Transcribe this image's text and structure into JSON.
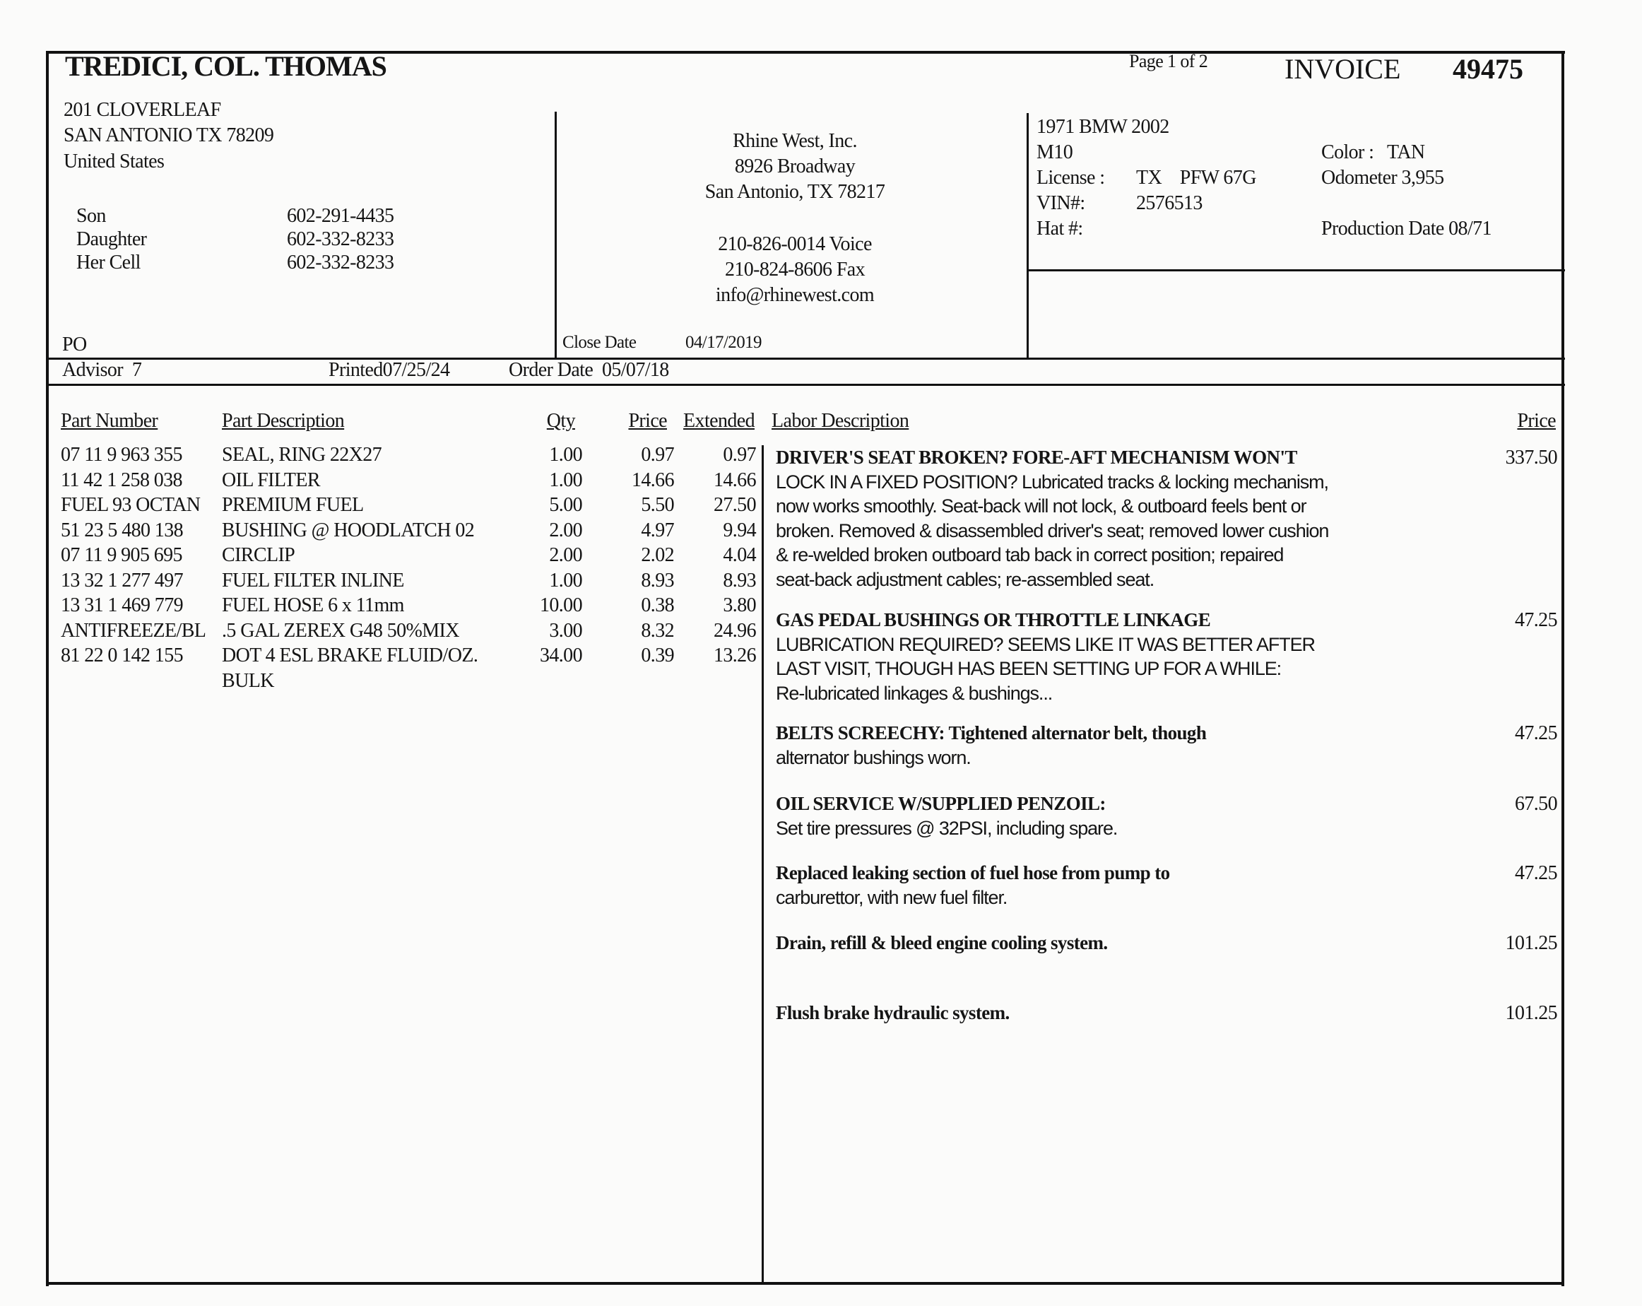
{
  "customer": {
    "name": "TREDICI, COL. THOMAS",
    "address_lines": [
      "201 CLOVERLEAF",
      "SAN ANTONIO TX 78209",
      "United States"
    ],
    "contacts": [
      {
        "label": "Son",
        "phone": "602-291-4435"
      },
      {
        "label": "Daughter",
        "phone": "602-332-8233"
      },
      {
        "label": "Her Cell",
        "phone": "602-332-8233"
      }
    ],
    "po_label": "PO"
  },
  "shop": {
    "name": "Rhine West, Inc.",
    "street": "8926 Broadway",
    "city": "San Antonio, TX 78217",
    "voice": "210-826-0014  Voice",
    "fax": "210-824-8606  Fax",
    "email": "info@rhinewest.com",
    "close_date_label": "Close Date",
    "close_date": "04/17/2019"
  },
  "header": {
    "page": "Page 1 of 2",
    "invoice_label": "INVOICE",
    "invoice_number": "49475"
  },
  "vehicle": {
    "model": "1971 BMW 2002",
    "engine": "M10",
    "license_label": "License :",
    "license": "TX    PFW 67G",
    "vin_label": "VIN#:",
    "vin": "2576513",
    "hat_label": "Hat #:",
    "color": "Color :   TAN",
    "odometer": "Odometer 3,955",
    "production_date": "Production Date 08/71"
  },
  "meta": {
    "advisor": "Advisor  7",
    "printed": "Printed07/25/24",
    "order_date": "Order Date  05/07/18"
  },
  "parts": {
    "headers": {
      "number": "Part Number",
      "description": "Part Description",
      "qty": "Qty",
      "price": "Price",
      "extended": "Extended"
    },
    "rows": [
      {
        "number": "07 11 9 963 355",
        "description": "SEAL, RING 22X27",
        "qty": "1.00",
        "price": "0.97",
        "extended": "0.97"
      },
      {
        "number": "11 42 1 258 038",
        "description": "OIL FILTER",
        "qty": "1.00",
        "price": "14.66",
        "extended": "14.66"
      },
      {
        "number": "FUEL 93 OCTAN",
        "description": "PREMIUM FUEL",
        "qty": "5.00",
        "price": "5.50",
        "extended": "27.50"
      },
      {
        "number": "51 23 5 480 138",
        "description": "BUSHING @ HOODLATCH 02",
        "qty": "2.00",
        "price": "4.97",
        "extended": "9.94"
      },
      {
        "number": "07 11 9 905 695",
        "description": "CIRCLIP",
        "qty": "2.00",
        "price": "2.02",
        "extended": "4.04"
      },
      {
        "number": "13 32 1 277 497",
        "description": "FUEL FILTER INLINE",
        "qty": "1.00",
        "price": "8.93",
        "extended": "8.93"
      },
      {
        "number": "13 31 1 469 779",
        "description": "FUEL HOSE 6 x 11mm",
        "qty": "10.00",
        "price": "0.38",
        "extended": "3.80"
      },
      {
        "number": "ANTIFREEZE/BL",
        "description": ".5 GAL ZEREX G48 50%MIX",
        "qty": "3.00",
        "price": "8.32",
        "extended": "24.96"
      },
      {
        "number": "81 22 0 142 155",
        "description": "DOT 4 ESL BRAKE FLUID/OZ.",
        "qty": "34.00",
        "price": "0.39",
        "extended": "13.26"
      },
      {
        "number": "",
        "description": "BULK",
        "qty": "",
        "price": "",
        "extended": ""
      }
    ]
  },
  "labor": {
    "headers": {
      "description": "Labor Description",
      "price": "Price"
    },
    "items": [
      {
        "price": "337.50",
        "heading": "DRIVER'S SEAT BROKEN?  FORE-AFT MECHANISM WON'T",
        "lines": [
          "LOCK IN A FIXED POSITION?  Lubricated tracks & locking mechanism,",
          "now works smoothly.  Seat-back will not lock, & outboard feels bent or",
          "broken.  Removed & disassembled driver's seat;  removed lower cushion",
          "& re-welded broken outboard tab back in correct position;  repaired",
          "seat-back adjustment cables;  re-assembled seat."
        ]
      },
      {
        "price": "47.25",
        "heading": "GAS PEDAL BUSHINGS OR THROTTLE LINKAGE",
        "lines": [
          "LUBRICATION REQUIRED?  SEEMS LIKE IT WAS BETTER AFTER",
          "LAST VISIT, THOUGH HAS BEEN SETTING UP FOR A WHILE:",
          "Re-lubricated linkages & bushings..."
        ]
      },
      {
        "price": "47.25",
        "heading": "BELTS SCREECHY:  Tightened alternator belt, though",
        "lines": [
          "alternator bushings worn."
        ]
      },
      {
        "price": "67.50",
        "heading": "OIL SERVICE W/SUPPLIED PENZOIL:",
        "lines": [
          "Set tire pressures @ 32PSI, including spare."
        ]
      },
      {
        "price": "47.25",
        "heading": "Replaced leaking section of fuel hose from pump to",
        "lines": [
          "carburettor, with new fuel filter."
        ]
      },
      {
        "price": "101.25",
        "heading": "Drain, refill & bleed engine cooling system.",
        "lines": []
      },
      {
        "price": "101.25",
        "heading": "Flush brake hydraulic system.",
        "lines": []
      }
    ]
  }
}
